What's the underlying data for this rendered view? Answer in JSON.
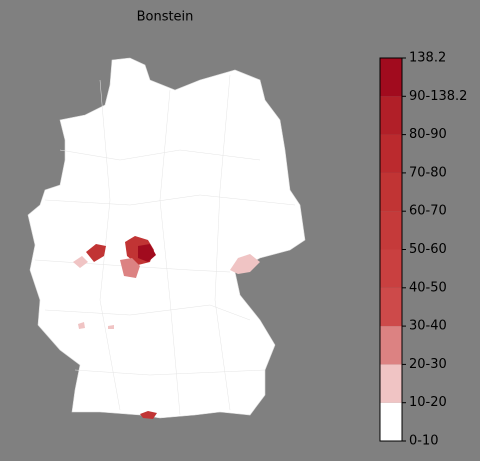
{
  "title": "Bonstein",
  "legend": {
    "labels": [
      "0-10",
      "10-20",
      "20-30",
      "30-40",
      "40-50",
      "50-60",
      "60-70",
      "70-80",
      "80-90",
      "90-138.2",
      "138.2"
    ],
    "colors": [
      "#ffffff",
      "#f0c4c4",
      "#dc8282",
      "#cd4a4a",
      "#c94040",
      "#c53a3a",
      "#c13434",
      "#bb2a2e",
      "#b11f28",
      "#a10b1e"
    ]
  }
}
